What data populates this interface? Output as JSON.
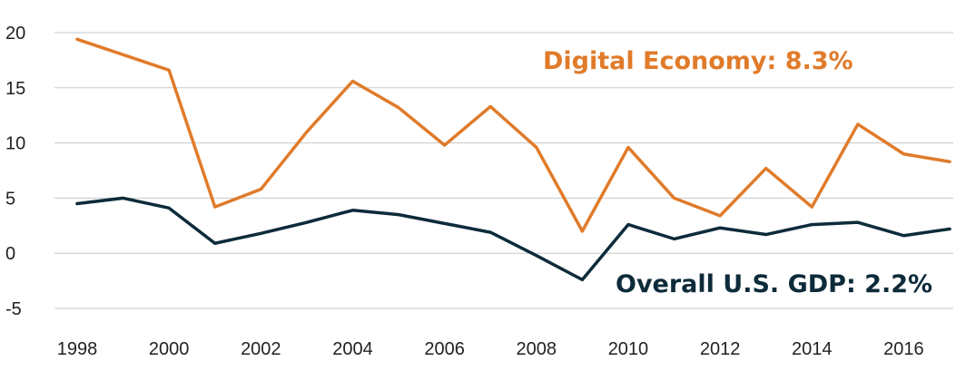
{
  "chart_data": {
    "type": "line",
    "title": "",
    "xlabel": "",
    "ylabel": "",
    "x": [
      1998,
      1999,
      2000,
      2001,
      2002,
      2003,
      2004,
      2005,
      2006,
      2007,
      2008,
      2009,
      2010,
      2011,
      2012,
      2013,
      2014,
      2015,
      2016,
      2017
    ],
    "x_tick_labels": [
      "1998",
      "2000",
      "2002",
      "2004",
      "2006",
      "2008",
      "2010",
      "2012",
      "2014",
      "2016"
    ],
    "y_tick_labels": [
      "20",
      "15",
      "10",
      "5",
      "0",
      "-5"
    ],
    "ylim": [
      -5,
      20
    ],
    "grid": true,
    "series": [
      {
        "name": "Digital Economy",
        "color": "#e07b2a",
        "values": [
          19.4,
          18.0,
          16.6,
          4.2,
          5.8,
          11.0,
          15.6,
          13.2,
          9.8,
          13.3,
          9.6,
          2.0,
          9.6,
          5.0,
          3.4,
          7.7,
          4.2,
          11.7,
          9.0,
          8.3
        ]
      },
      {
        "name": "Overall U.S. GDP",
        "color": "#0d2b3a",
        "values": [
          4.5,
          5.0,
          4.1,
          0.9,
          1.8,
          2.8,
          3.9,
          3.5,
          2.7,
          1.9,
          -0.2,
          -2.4,
          2.6,
          1.3,
          2.3,
          1.7,
          2.6,
          2.8,
          1.6,
          2.2
        ]
      }
    ],
    "annotations": [
      {
        "text": "Digital Economy: 8.3%",
        "color": "#e07b2a"
      },
      {
        "text": "Overall U.S. GDP: 2.2%",
        "color": "#0d2b3a"
      }
    ]
  }
}
